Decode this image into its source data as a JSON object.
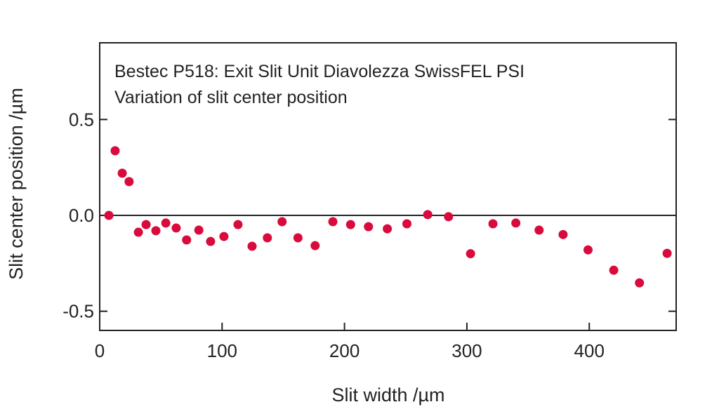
{
  "chart_data": {
    "type": "scatter",
    "annotations": [
      "Bestec P518: Exit Slit Unit Diavolezza SwissFEL PSI",
      "Variation of slit center position"
    ],
    "xlabel": "Slit width /µm",
    "ylabel": "Slit center position /µm",
    "xlim": [
      0,
      471
    ],
    "ylim": [
      -0.6,
      0.9
    ],
    "xticks": [
      0,
      100,
      200,
      300,
      400
    ],
    "xtick_labels": [
      "0",
      "100",
      "200",
      "300",
      "400"
    ],
    "yticks": [
      0.5,
      0.0,
      -0.5
    ],
    "ytick_labels": [
      "0.5",
      "0.0",
      "-0.5"
    ],
    "zero_line": true,
    "grid": false,
    "marker_color": "#d90a3c",
    "points": [
      [
        7.5,
        0.0
      ],
      [
        12.6,
        0.337
      ],
      [
        18.4,
        0.22
      ],
      [
        24,
        0.176
      ],
      [
        31.6,
        -0.088
      ],
      [
        37.9,
        -0.048
      ],
      [
        45.9,
        -0.08
      ],
      [
        54,
        -0.04
      ],
      [
        62.5,
        -0.066
      ],
      [
        71,
        -0.128
      ],
      [
        81,
        -0.077
      ],
      [
        90.6,
        -0.136
      ],
      [
        101.5,
        -0.11
      ],
      [
        113,
        -0.048
      ],
      [
        124.5,
        -0.161
      ],
      [
        137,
        -0.117
      ],
      [
        149,
        -0.033
      ],
      [
        162,
        -0.117
      ],
      [
        176,
        -0.158
      ],
      [
        190.5,
        -0.033
      ],
      [
        205,
        -0.048
      ],
      [
        219.6,
        -0.059
      ],
      [
        235,
        -0.07
      ],
      [
        251,
        -0.044
      ],
      [
        268,
        0.004
      ],
      [
        285,
        -0.007
      ],
      [
        303,
        -0.2
      ],
      [
        321.3,
        -0.044
      ],
      [
        340,
        -0.04
      ],
      [
        359,
        -0.077
      ],
      [
        378.6,
        -0.1
      ],
      [
        399,
        -0.18
      ],
      [
        420,
        -0.286
      ],
      [
        441,
        -0.352
      ],
      [
        463.6,
        -0.198
      ]
    ]
  }
}
